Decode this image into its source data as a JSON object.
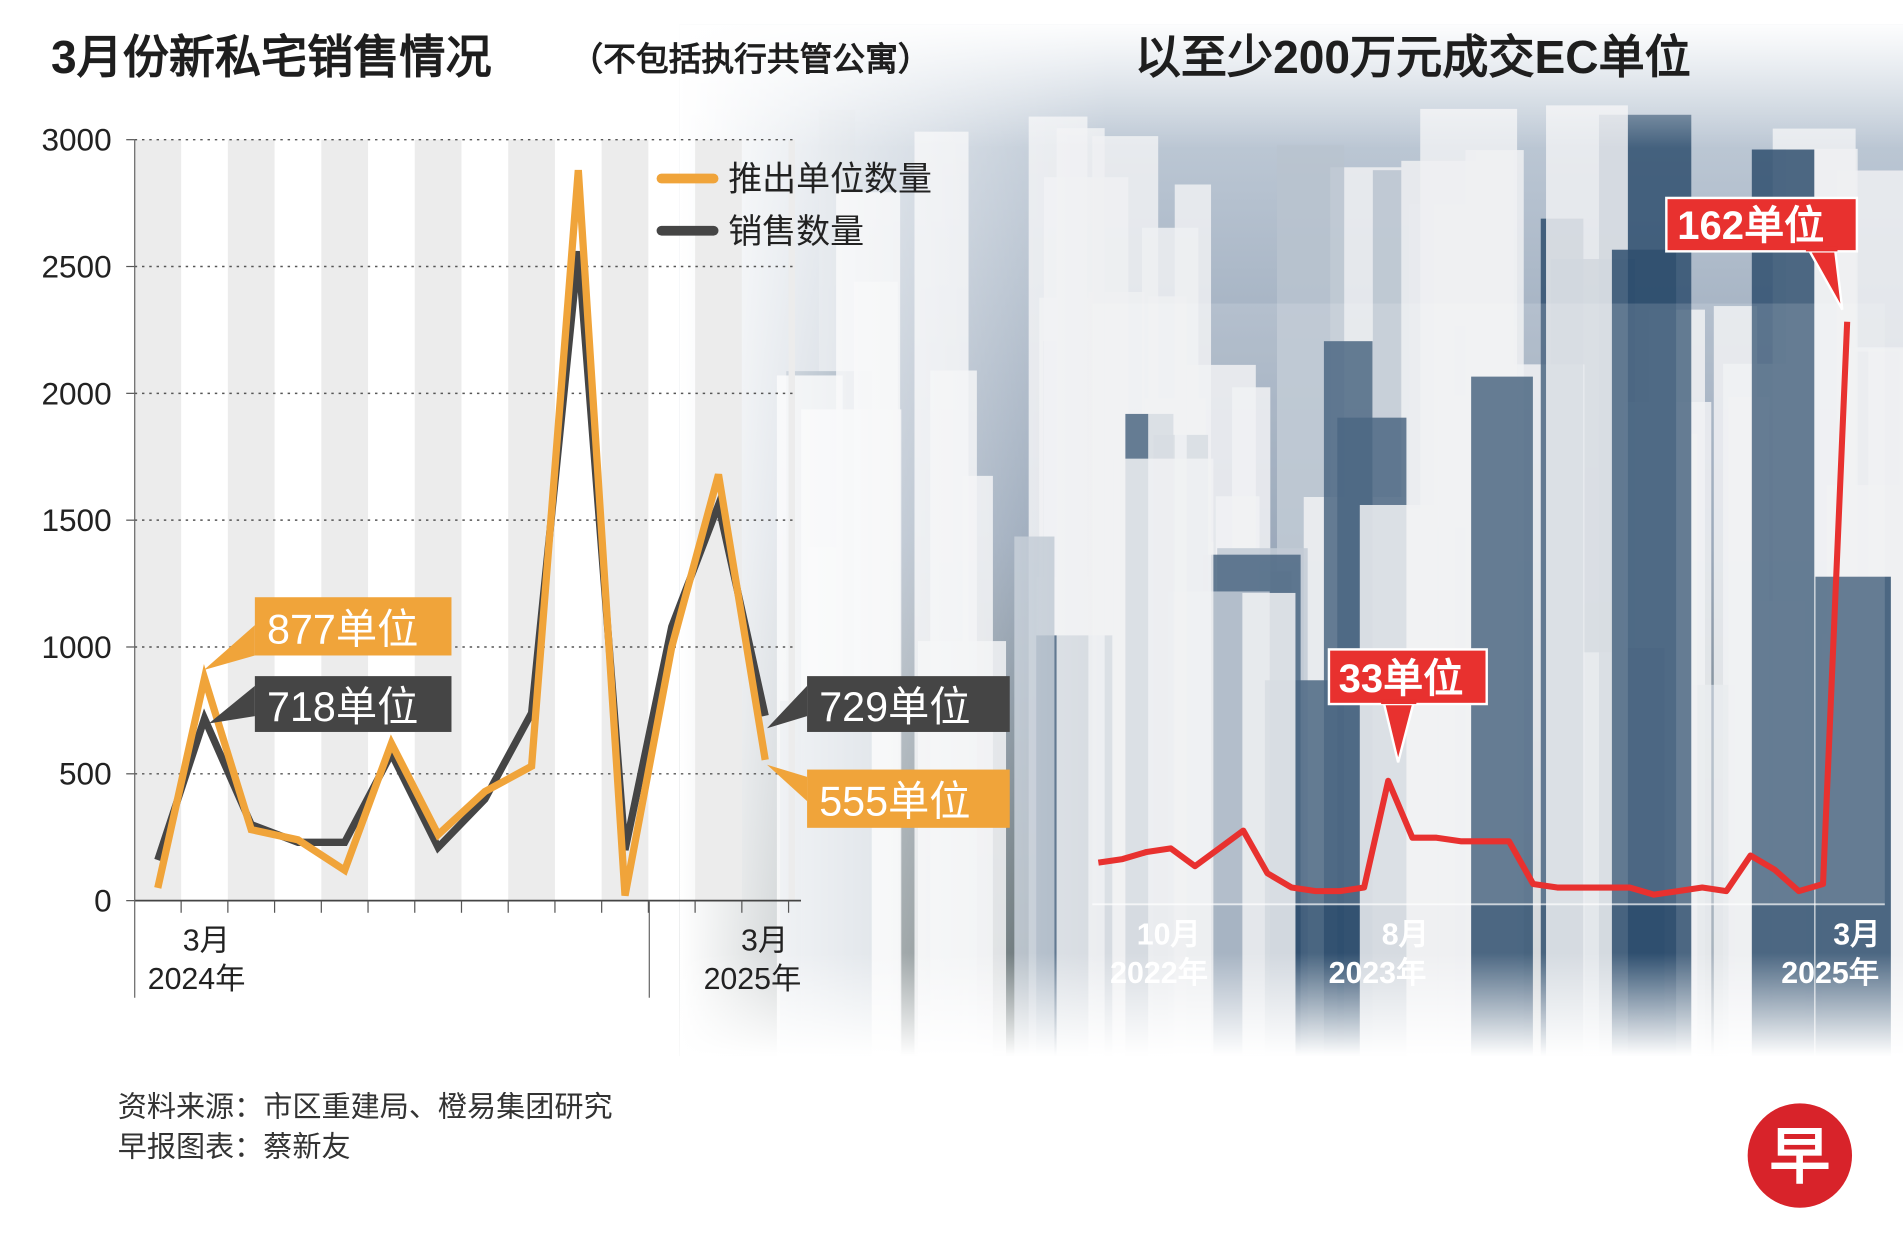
{
  "left_title": "3月份新私宅销售情况",
  "left_subtitle": "（不包括执行共管公寓）",
  "right_title": "以至少200万元成交EC单位",
  "footer": {
    "source": "资料来源：市区重建局、橙易集团研究",
    "credit": "早报图表：蔡新友",
    "logo_text": "早"
  },
  "colors": {
    "launched": "#f0a43a",
    "sold": "#454545",
    "ec": "#e8312f"
  },
  "chart_data": [
    {
      "type": "line",
      "title": "3月份新私宅销售情况（不包括执行共管公寓）",
      "x": [
        "2024-02",
        "2024-03",
        "2024-04",
        "2024-05",
        "2024-06",
        "2024-07",
        "2024-08",
        "2024-09",
        "2024-10",
        "2024-11",
        "2024-12",
        "2025-01",
        "2025-02",
        "2025-03"
      ],
      "ylim": [
        0,
        3000
      ],
      "yticks": [
        "0",
        "500",
        "1000",
        "1500",
        "2000",
        "2500",
        "3000"
      ],
      "grid": true,
      "legend_position": "top-right",
      "xtick_labels": [
        {
          "month": "3月",
          "year": "2024年",
          "index": 1
        },
        {
          "month": "3月",
          "year": "2025年",
          "index": 13
        }
      ],
      "series": [
        {
          "name": "推出单位数量",
          "values": [
            50,
            877,
            280,
            240,
            120,
            620,
            260,
            430,
            530,
            2880,
            20,
            1000,
            1680,
            555
          ]
        },
        {
          "name": "销售数量",
          "values": [
            160,
            718,
            300,
            230,
            230,
            580,
            210,
            400,
            740,
            2560,
            200,
            1080,
            1560,
            729
          ]
        }
      ],
      "annotations": [
        {
          "text": "877单位",
          "series": 0,
          "index": 1
        },
        {
          "text": "718单位",
          "series": 1,
          "index": 1
        },
        {
          "text": "729单位",
          "series": 1,
          "index": 13
        },
        {
          "text": "555单位",
          "series": 0,
          "index": 13
        }
      ]
    },
    {
      "type": "line",
      "title": "以至少200万元成交EC单位",
      "x_start": "2022-08",
      "x_end": "2025-03",
      "ylim": [
        0,
        162
      ],
      "values": [
        10,
        11,
        13,
        14,
        9,
        14,
        19,
        7,
        3,
        2,
        2,
        3,
        33,
        17,
        17,
        16,
        16,
        16,
        4,
        3,
        3,
        3,
        3,
        1,
        2,
        3,
        2,
        12,
        8,
        2,
        4,
        162
      ],
      "xtick_labels": [
        {
          "month": "10月",
          "year": "2022年",
          "index": 2
        },
        {
          "month": "8月",
          "year": "2023年",
          "index": 12
        },
        {
          "month": "3月",
          "year": "2025年",
          "index": 31
        }
      ],
      "annotations": [
        {
          "text": "33单位",
          "index": 12
        },
        {
          "text": "162单位",
          "index": 31
        }
      ]
    }
  ]
}
